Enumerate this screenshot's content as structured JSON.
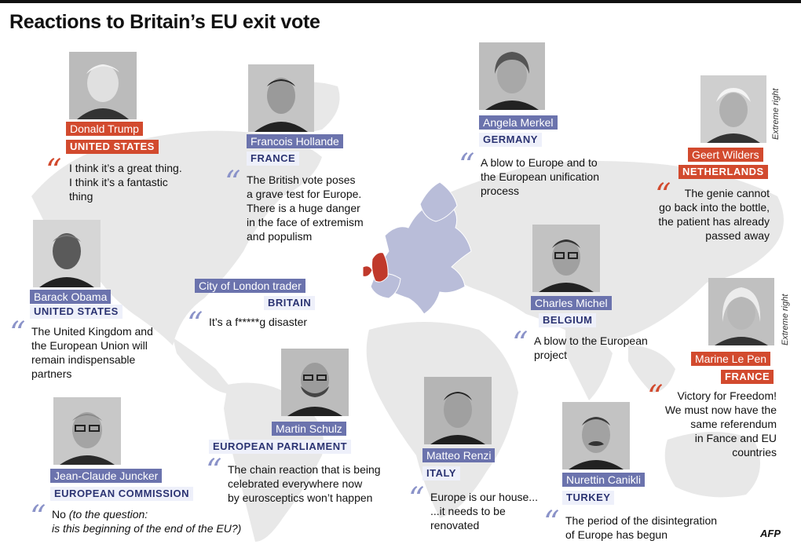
{
  "title": "Reactions to Britain’s EU exit vote",
  "colors": {
    "accent_blue": "#6b73ad",
    "accent_red": "#d24a2e",
    "map_gray": "#e6e6e6",
    "europe_lilac": "#b9bdd9",
    "britain_red": "#c0392b"
  },
  "people": [
    {
      "id": "trump",
      "name": "Donald Trump",
      "country": "UNITED STATES",
      "quote": "I think it’s a great thing.\nI think it’s a fantastic\nthing",
      "style": "red"
    },
    {
      "id": "hollande",
      "name": "Francois Hollande",
      "country": "FRANCE",
      "quote": "The British vote poses\na grave test for Europe.\nThere is a huge danger\nin the face of extremism\nand populism",
      "style": "blue"
    },
    {
      "id": "merkel",
      "name": "Angela Merkel",
      "country": "GERMANY",
      "quote": "A blow to Europe and to\nthe European unification\nprocess",
      "style": "blue"
    },
    {
      "id": "wilders",
      "name": "Geert Wilders",
      "country": "NETHERLANDS",
      "quote": "The genie cannot\ngo back into the bottle,\nthe patient has already\npassed away",
      "style": "red",
      "note": "Extreme right"
    },
    {
      "id": "obama",
      "name": "Barack Obama",
      "country": "UNITED STATES",
      "quote": "The United Kingdom and\nthe European Union will\nremain indispensable\npartners",
      "style": "blue"
    },
    {
      "id": "trader",
      "name": "City of London trader",
      "country": "BRITAIN",
      "quote": "It’s a f*****g disaster",
      "style": "blue"
    },
    {
      "id": "michel",
      "name": "Charles Michel",
      "country": "BELGIUM",
      "quote": "A blow to the European\nproject",
      "style": "blue"
    },
    {
      "id": "lepen",
      "name": "Marine Le Pen",
      "country": "FRANCE",
      "quote": "Victory for Freedom!\nWe must now have the\nsame referendum\nin Fance and EU\ncountries",
      "style": "red",
      "note": "Extreme right"
    },
    {
      "id": "juncker",
      "name": "Jean-Claude Juncker",
      "country": "EUROPEAN COMMISSION",
      "quote": "No",
      "quote_extra": "(to the question:\nis this beginning of the end of the EU?)",
      "style": "blue"
    },
    {
      "id": "schulz",
      "name": "Martin Schulz",
      "country": "EUROPEAN PARLIAMENT",
      "quote": "The chain reaction that is being\ncelebrated everywhere now\nby eurosceptics won’t happen",
      "style": "blue"
    },
    {
      "id": "renzi",
      "name": "Matteo Renzi",
      "country": "ITALY",
      "quote": "Europe is our house...\n...it needs to be\nrenovated",
      "style": "blue"
    },
    {
      "id": "canikli",
      "name": "Nurettin Canikli",
      "country": "TURKEY",
      "quote": "The period of the disintegration\nof Europe has begun",
      "style": "blue"
    }
  ],
  "logo": "AFP"
}
